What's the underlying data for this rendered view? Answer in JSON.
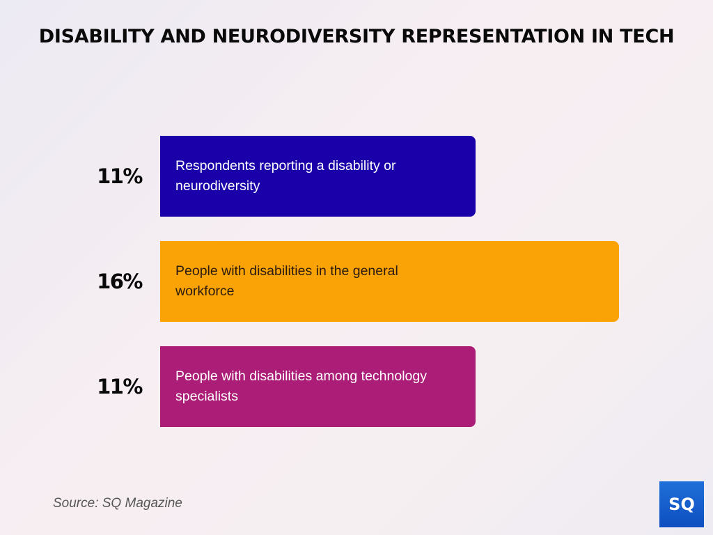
{
  "chart_data": {
    "type": "bar",
    "orientation": "horizontal",
    "title": "DISABILITY AND NEURODIVERSITY REPRESENTATION IN TECH",
    "categories": [
      "Respondents reporting a disability or neurodiversity",
      "People with disabilities in the general workforce",
      "People with disabilities among technology specialists"
    ],
    "values": [
      11,
      16,
      11
    ],
    "value_labels": [
      "11%",
      "16%",
      "11%"
    ],
    "unit": "%",
    "colors": [
      "#1a00a8",
      "#faa307",
      "#ac1d78"
    ],
    "text_colors": [
      "#ffffff",
      "#2a1a10",
      "#ffffff"
    ],
    "xlabel": "",
    "ylabel": "",
    "grid": false,
    "legend": "none"
  },
  "footer": {
    "source": "Source: SQ Magazine",
    "logo_text": "SQ"
  }
}
